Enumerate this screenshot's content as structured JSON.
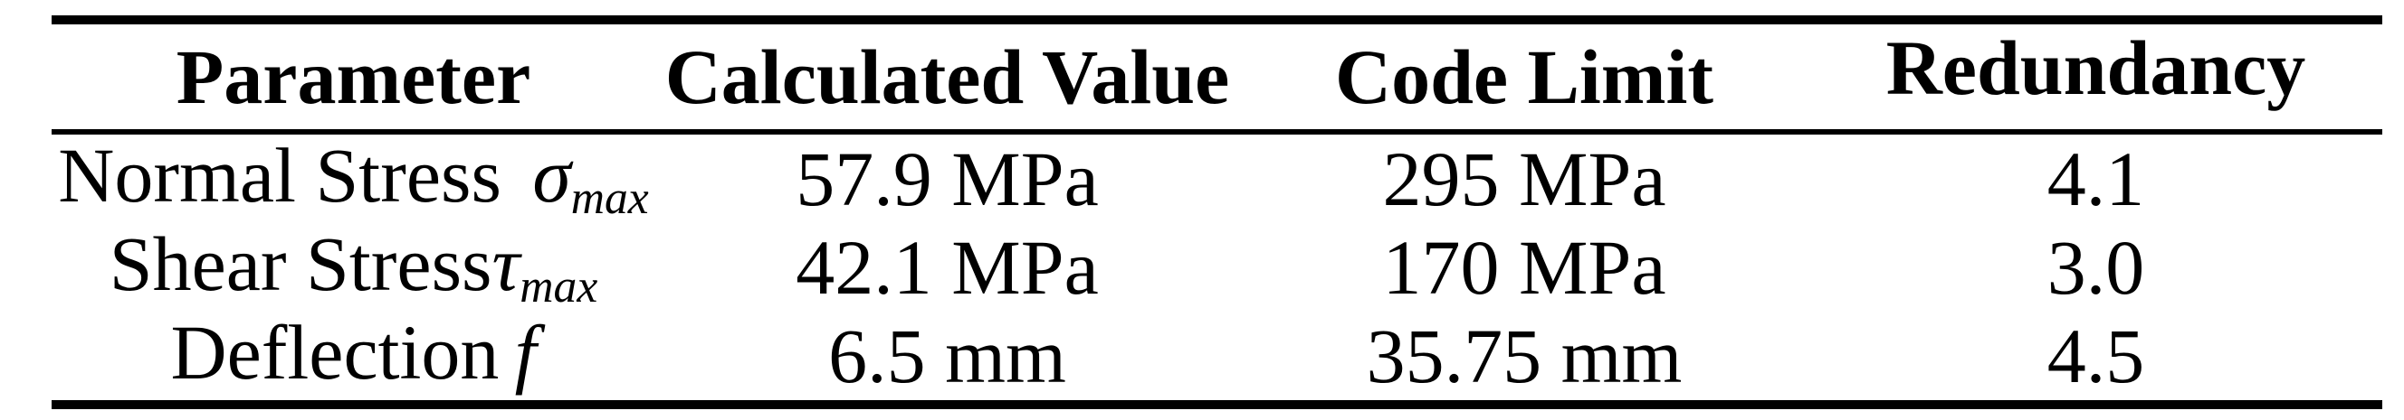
{
  "table": {
    "background_color": "#ffffff",
    "ink_color": "#000000",
    "header": {
      "parameter": "Parameter",
      "calculated_value": "Calculated Value",
      "code_limit": "Code Limit",
      "redundancy": "Redundancy"
    },
    "rows": [
      {
        "param_text": "Normal Stress",
        "param_symbol": "σ",
        "param_subscript": "max",
        "calculated_value": "57.9 MPa",
        "code_limit": "295 MPa",
        "redundancy": "4.1"
      },
      {
        "param_text": "Shear Stress",
        "param_symbol": "τ",
        "param_subscript": "max",
        "calculated_value": "42.1 MPa",
        "code_limit": "170 MPa",
        "redundancy": "3.0"
      },
      {
        "param_text": "Deflection",
        "param_symbol": "f",
        "param_subscript": "",
        "calculated_value": "6.5 mm",
        "code_limit": "35.75 mm",
        "redundancy": "4.5"
      }
    ]
  }
}
